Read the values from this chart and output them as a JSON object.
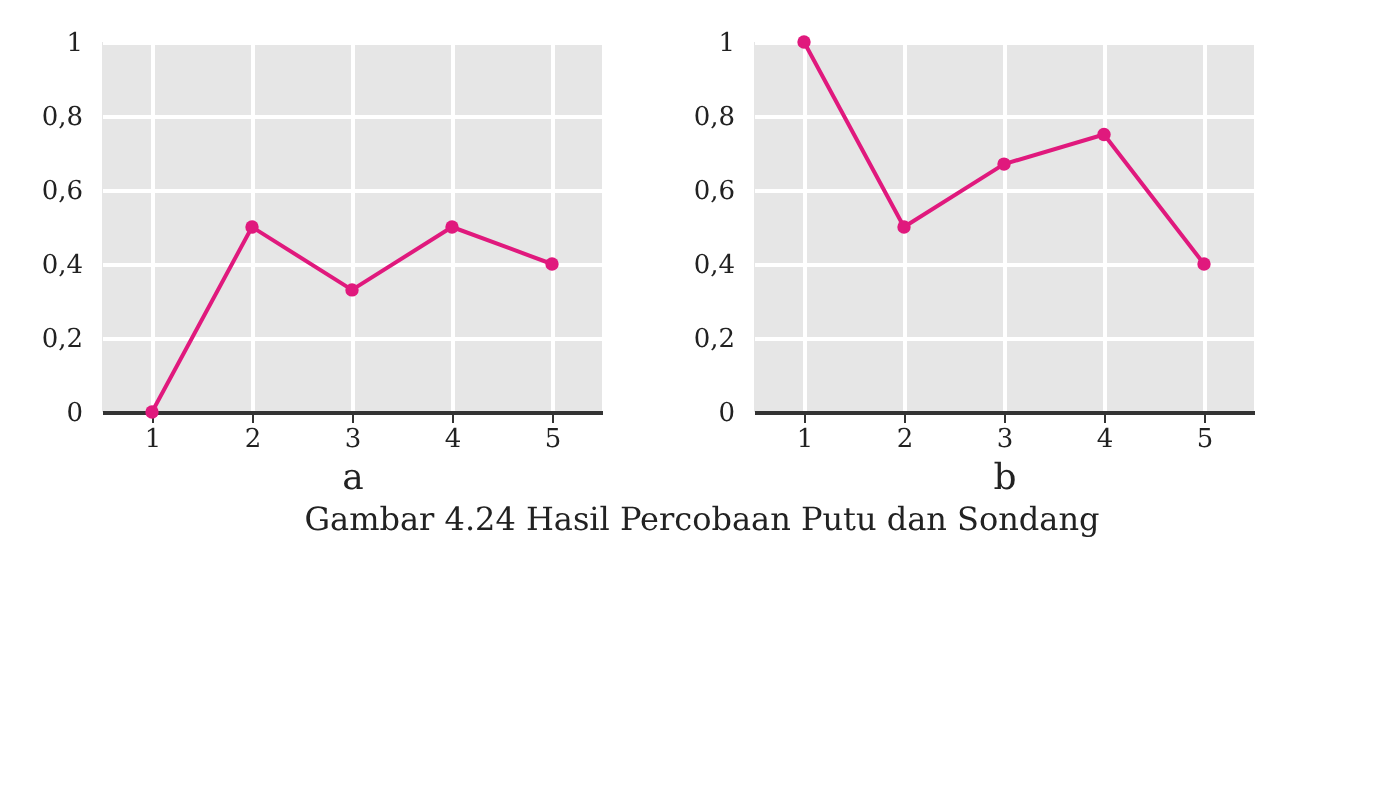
{
  "chart_data": [
    {
      "type": "line",
      "xlabel": "a",
      "x": [
        1,
        2,
        3,
        4,
        5
      ],
      "xlim": [
        0.5,
        5.5
      ],
      "xticks": [
        1,
        2,
        3,
        4,
        5
      ],
      "ylim": [
        0,
        1
      ],
      "yticks": [
        0,
        {
          "value": 0.2,
          "label": "0,2"
        },
        {
          "value": 0.4,
          "label": "0,4"
        },
        {
          "value": 0.6,
          "label": "0,6"
        },
        {
          "value": 0.8,
          "label": "0,8"
        },
        1
      ],
      "grid": true,
      "marker": "circle",
      "line_style": "solid",
      "series": [
        {
          "color": "#e0197d",
          "values": [
            0,
            0.5,
            0.33,
            0.5,
            0.4
          ]
        }
      ]
    },
    {
      "type": "line",
      "xlabel": "b",
      "x": [
        1,
        2,
        3,
        4,
        5
      ],
      "xlim": [
        0.5,
        5.5
      ],
      "xticks": [
        1,
        2,
        3,
        4,
        5
      ],
      "ylim": [
        0,
        1
      ],
      "yticks": [
        0,
        {
          "value": 0.2,
          "label": "0,2"
        },
        {
          "value": 0.4,
          "label": "0,4"
        },
        {
          "value": 0.6,
          "label": "0,6"
        },
        {
          "value": 0.8,
          "label": "0,8"
        },
        1
      ],
      "grid": true,
      "marker": "circle",
      "line_style": "solid",
      "series": [
        {
          "color": "#e0197d",
          "values": [
            1,
            0.5,
            0.67,
            0.75,
            0.4
          ]
        }
      ],
      "annotations": [
        "Gambar 4.24 Hasil Percobaan Putu dan Sondang"
      ]
    }
  ]
}
